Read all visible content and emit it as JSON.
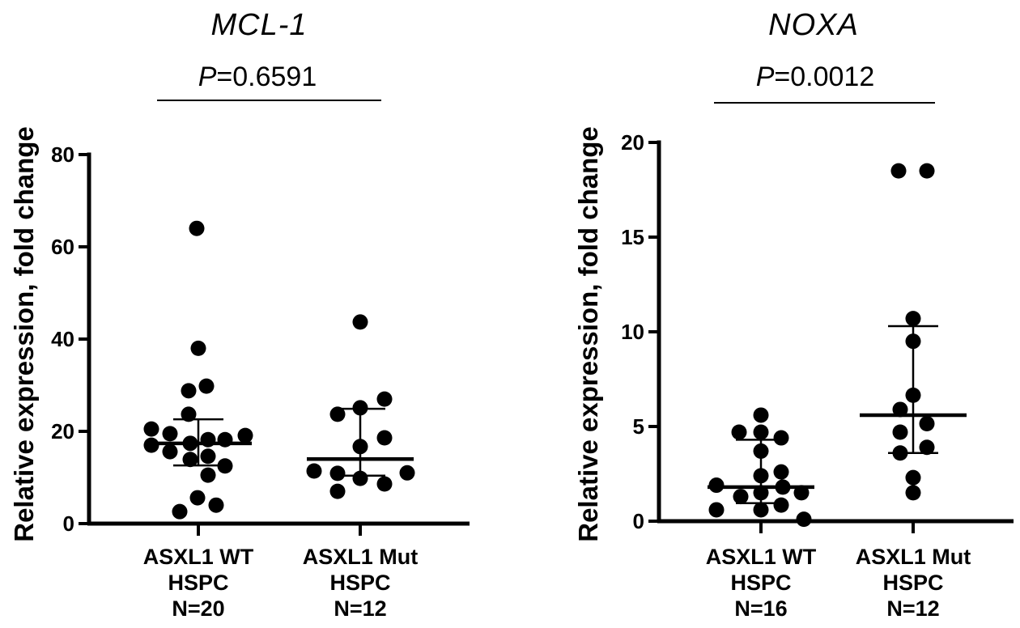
{
  "colors": {
    "background": "#ffffff",
    "ink": "#000000"
  },
  "chart_data": [
    {
      "type": "scatter",
      "title": "MCL-1",
      "p_label": {
        "prefix": "P",
        "rest": "=0.6591"
      },
      "ylabel": "Relative expression, fold change",
      "ylim": [
        0,
        80
      ],
      "yticks": [
        0,
        20,
        40,
        60,
        80
      ],
      "grid": false,
      "legend": "none",
      "groups": [
        {
          "label_lines": [
            "ASXL1 WT",
            "HSPC",
            "N=20"
          ],
          "n": 20,
          "points": [
            {
              "dx": -2,
              "v": 64
            },
            {
              "dx": 0,
              "v": 38
            },
            {
              "dx": 10,
              "v": 29.8
            },
            {
              "dx": -12,
              "v": 28.8
            },
            {
              "dx": -12,
              "v": 23.7
            },
            {
              "dx": -58,
              "v": 20.5
            },
            {
              "dx": -35,
              "v": 19.5
            },
            {
              "dx": 58,
              "v": 19.1
            },
            {
              "dx": 12,
              "v": 18.2
            },
            {
              "dx": 33,
              "v": 18.2
            },
            {
              "dx": -10,
              "v": 17.4
            },
            {
              "dx": -58,
              "v": 17.0
            },
            {
              "dx": -35,
              "v": 15.6
            },
            {
              "dx": 12,
              "v": 14.6
            },
            {
              "dx": -10,
              "v": 13.9
            },
            {
              "dx": 33,
              "v": 12.5
            },
            {
              "dx": 12,
              "v": 10.5
            },
            {
              "dx": -1,
              "v": 5.6
            },
            {
              "dx": 22,
              "v": 4.0
            },
            {
              "dx": -23,
              "v": 2.6
            }
          ],
          "stats": {
            "mean": 17.4,
            "upper": 22.6,
            "lower": 12.6
          }
        },
        {
          "label_lines": [
            "ASXL1 Mut",
            "HSPC",
            "N=12"
          ],
          "n": 12,
          "points": [
            {
              "dx": 0,
              "v": 43.7
            },
            {
              "dx": 30,
              "v": 27.0
            },
            {
              "dx": 0,
              "v": 25.1
            },
            {
              "dx": -28,
              "v": 23.7
            },
            {
              "dx": 30,
              "v": 18.6
            },
            {
              "dx": 0,
              "v": 16.7
            },
            {
              "dx": -57,
              "v": 11.4
            },
            {
              "dx": 58,
              "v": 11.0
            },
            {
              "dx": -28,
              "v": 10.9
            },
            {
              "dx": 0,
              "v": 9.8
            },
            {
              "dx": 30,
              "v": 8.6
            },
            {
              "dx": -28,
              "v": 7.0
            }
          ],
          "stats": {
            "mean": 14.0,
            "upper": 24.9,
            "lower": 10.4
          }
        }
      ]
    },
    {
      "type": "scatter",
      "title": "NOXA",
      "p_label": {
        "prefix": "P",
        "rest": "=0.0012"
      },
      "ylabel": "Relative expression, fold change",
      "ylim": [
        0,
        20
      ],
      "yticks": [
        0,
        5,
        10,
        15,
        20
      ],
      "grid": false,
      "legend": "none",
      "groups": [
        {
          "label_lines": [
            "ASXL1 WT",
            "HSPC",
            "N=16"
          ],
          "n": 16,
          "points": [
            {
              "dx": 0,
              "v": 5.6
            },
            {
              "dx": -27,
              "v": 4.7
            },
            {
              "dx": 0,
              "v": 4.7
            },
            {
              "dx": 25,
              "v": 4.4
            },
            {
              "dx": 0,
              "v": 3.7
            },
            {
              "dx": 25,
              "v": 2.6
            },
            {
              "dx": 0,
              "v": 2.4
            },
            {
              "dx": -55,
              "v": 1.9
            },
            {
              "dx": 27,
              "v": 1.8
            },
            {
              "dx": 0,
              "v": 1.5
            },
            {
              "dx": 50,
              "v": 1.5
            },
            {
              "dx": -25,
              "v": 1.3
            },
            {
              "dx": 25,
              "v": 0.85
            },
            {
              "dx": -55,
              "v": 0.6
            },
            {
              "dx": 0,
              "v": 0.6
            },
            {
              "dx": 53,
              "v": 0.1
            }
          ],
          "stats": {
            "mean": 1.8,
            "upper": 4.3,
            "lower": 0.95
          }
        },
        {
          "label_lines": [
            "ASXL1 Mut",
            "HSPC",
            "N=12"
          ],
          "n": 12,
          "points": [
            {
              "dx": -18,
              "v": 18.5
            },
            {
              "dx": 17,
              "v": 18.5
            },
            {
              "dx": 0,
              "v": 10.7
            },
            {
              "dx": 0,
              "v": 9.5
            },
            {
              "dx": 0,
              "v": 6.65
            },
            {
              "dx": -16,
              "v": 5.9
            },
            {
              "dx": 17,
              "v": 5.15
            },
            {
              "dx": -16,
              "v": 4.7
            },
            {
              "dx": 17,
              "v": 3.9
            },
            {
              "dx": -16,
              "v": 3.6
            },
            {
              "dx": 0,
              "v": 2.3
            },
            {
              "dx": 0,
              "v": 1.5
            }
          ],
          "stats": {
            "mean": 5.6,
            "upper": 10.3,
            "lower": 3.6
          }
        }
      ]
    }
  ]
}
